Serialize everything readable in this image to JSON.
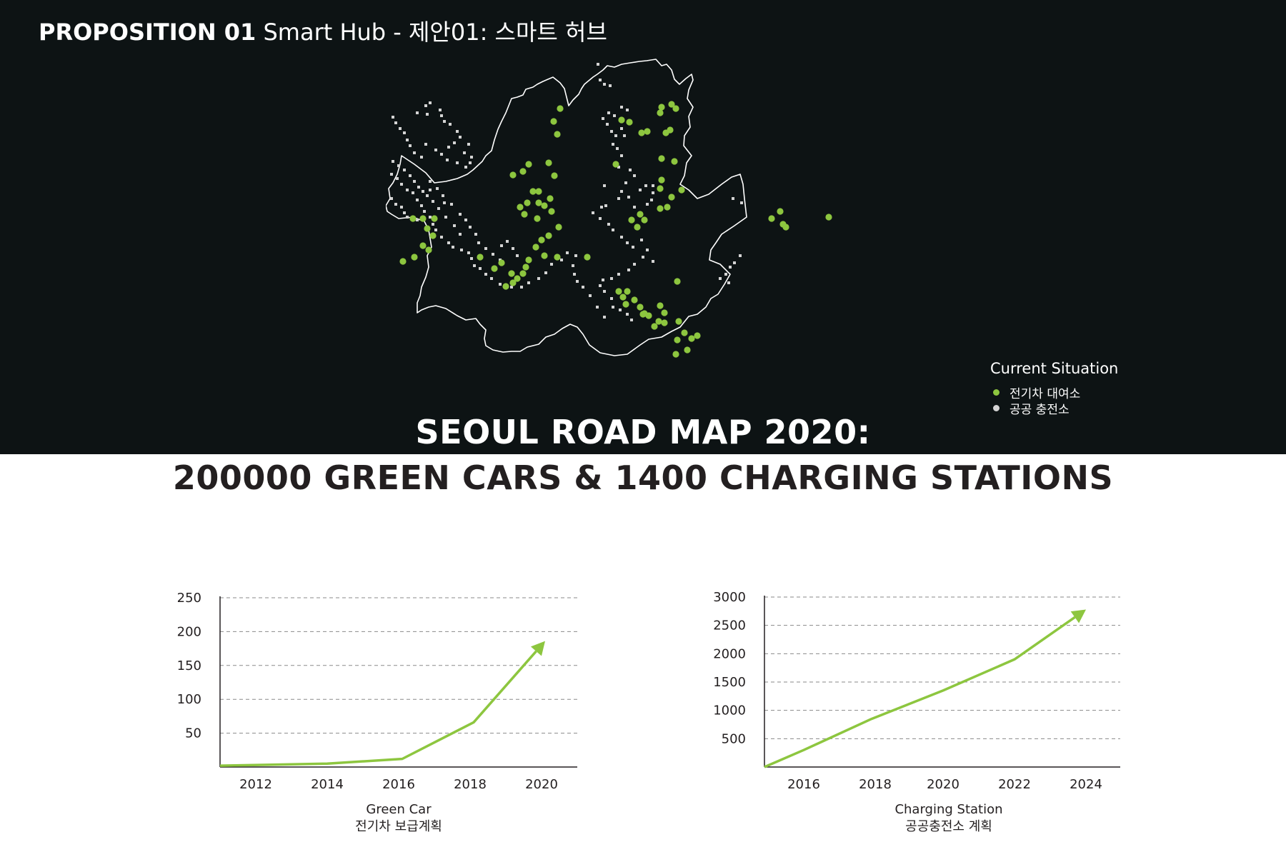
{
  "header": {
    "prefix": "PROPOSITION 01",
    "rest": " Smart Hub - 제안01: 스마트 허브"
  },
  "legend": {
    "title": "Current Situation",
    "items": [
      {
        "label": "전기차 대여소",
        "color": "#8dc63f"
      },
      {
        "label": "공공 충전소",
        "color": "#d4d4d4"
      }
    ]
  },
  "headline": {
    "line1": "SEOUL ROAD MAP 2020:",
    "line2": "200000 GREEN CARS & 1400 CHARGING STATIONS"
  },
  "colors": {
    "background_dark": "#0d1314",
    "accent_green": "#8dc63f",
    "station_gray": "#d4d4d4",
    "text_dark": "#231f20"
  },
  "chart_data": [
    {
      "type": "line",
      "x": [
        2011,
        2014,
        2016.1,
        2018.1,
        2020.1
      ],
      "values": [
        2,
        5,
        12,
        66,
        186
      ],
      "xticks": [
        "2012",
        "2014",
        "2016",
        "2018",
        "2020"
      ],
      "xtick_values": [
        2012,
        2014,
        2016,
        2018,
        2020
      ],
      "yticks": [
        "250",
        "200",
        "150",
        "100",
        "50"
      ],
      "ytick_values": [
        250,
        200,
        150,
        100,
        50
      ],
      "xlim": [
        2011,
        2022
      ],
      "ylim": [
        0,
        250
      ],
      "grid": true,
      "line_color": "#8dc63f",
      "arrow_end": true,
      "caption_en": "Green Car",
      "caption_ko": "전기차 보급계획"
    },
    {
      "type": "line",
      "x": [
        2015,
        2016.1,
        2018,
        2020,
        2022,
        2024
      ],
      "values": [
        0,
        300,
        850,
        1350,
        1900,
        2780
      ],
      "xticks": [
        "2016",
        "2018",
        "2020",
        "2022",
        "2024"
      ],
      "xtick_values": [
        2016.1,
        2018.1,
        2020,
        2022,
        2024
      ],
      "yticks": [
        "3000",
        "2500",
        "2000",
        "1500",
        "1000",
        "500"
      ],
      "ytick_values": [
        3000,
        2500,
        2000,
        1500,
        1000,
        500
      ],
      "xlim": [
        2015,
        2026
      ],
      "ylim": [
        0,
        3000
      ],
      "grid": true,
      "line_color": "#8dc63f",
      "arrow_end": true,
      "caption_en": "Charging Station",
      "caption_ko": "공공충전소 계획"
    }
  ]
}
